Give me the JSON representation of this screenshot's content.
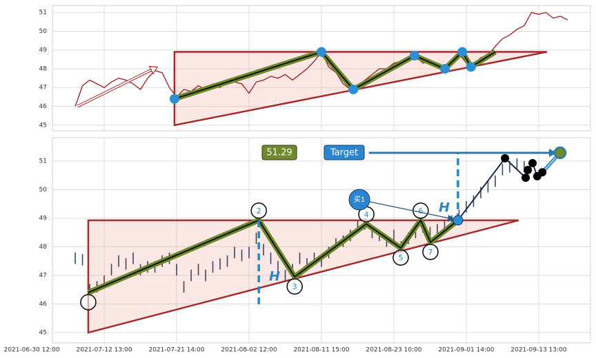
{
  "chart_data": [
    {
      "type": "line",
      "x": [
        12,
        14,
        16,
        18,
        20,
        22,
        24,
        26,
        28,
        30,
        32,
        34,
        36,
        38,
        40,
        42,
        44,
        46,
        48,
        50,
        52,
        54,
        56,
        58,
        60,
        62,
        64,
        66,
        68,
        70,
        72,
        74,
        76,
        78,
        80,
        82,
        84,
        86,
        88,
        90,
        92,
        94,
        96,
        98,
        100,
        102,
        104,
        106,
        108,
        110,
        112,
        114,
        116,
        118,
        120,
        122,
        124,
        126,
        128,
        130,
        132,
        134,
        136,
        138,
        140,
        142,
        144,
        146,
        148
      ],
      "values": [
        46.0,
        47.1,
        47.4,
        47.2,
        47.0,
        47.3,
        47.5,
        47.4,
        47.2,
        46.9,
        47.5,
        47.9,
        47.8,
        47.0,
        46.5,
        46.9,
        46.8,
        47.1,
        46.9,
        47.2,
        47.0,
        47.4,
        47.3,
        47.2,
        46.7,
        47.3,
        47.4,
        47.6,
        47.5,
        47.7,
        47.4,
        47.7,
        48.0,
        48.4,
        48.9,
        48.1,
        47.8,
        47.2,
        46.9,
        47.1,
        47.4,
        47.7,
        48.0,
        48.0,
        48.3,
        48.4,
        48.5,
        48.7,
        48.3,
        48.4,
        48.2,
        48.0,
        48.4,
        48.8,
        48.3,
        48.2,
        48.6,
        48.7,
        49.2,
        49.6,
        49.8,
        50.1,
        50.3,
        51.0,
        50.9,
        51.0,
        50.7,
        50.8,
        50.6
      ],
      "color": "#a0282c",
      "xlim": [
        5.7,
        154.3
      ],
      "ylim": [
        44.7,
        51.37
      ],
      "yticks": [
        45,
        46,
        47,
        48,
        49,
        50,
        51
      ],
      "grid": true,
      "pattern": {
        "triangle": {
          "x": [
            39.4,
            39.4,
            142.3
          ],
          "values": [
            48.9,
            45.0,
            48.9
          ]
        },
        "zigzag": {
          "x": [
            39.4,
            80,
            88.8,
            105.7,
            114.1,
            118.9,
            121.3,
            128
          ],
          "values": [
            46.4,
            48.9,
            46.9,
            48.7,
            48.0,
            48.9,
            48.1,
            48.9
          ]
        },
        "arrow": {
          "x": [
            12.6,
            34.7
          ],
          "values": [
            46.0,
            48.1
          ]
        }
      }
    },
    {
      "type": "ohlc",
      "x": [
        12,
        14,
        16,
        18,
        20,
        22,
        24,
        26,
        28,
        30,
        32,
        34,
        36,
        38,
        40,
        42,
        44,
        46,
        48,
        50,
        52,
        54,
        56,
        58,
        60,
        62,
        64,
        66,
        68,
        70,
        72,
        74,
        76,
        78,
        80,
        82,
        84,
        86,
        88,
        90,
        92,
        94,
        96,
        98,
        100,
        102,
        104,
        106,
        108,
        110,
        112,
        114,
        116,
        118,
        120,
        122,
        124,
        126,
        128,
        130,
        132,
        134,
        136
      ],
      "low": [
        47.4,
        47.35,
        46.3,
        46.4,
        46.6,
        47.0,
        47.3,
        47.2,
        47.4,
        47.0,
        47.1,
        47.1,
        47.3,
        47.4,
        47.0,
        46.4,
        46.8,
        47.0,
        46.8,
        47.1,
        47.2,
        47.3,
        47.6,
        47.5,
        47.6,
        48.1,
        47.7,
        47.4,
        47.1,
        46.8,
        47.0,
        47.4,
        47.2,
        47.4,
        47.3,
        47.6,
        47.9,
        48.0,
        48.2,
        48.5,
        48.6,
        48.3,
        48.2,
        48.0,
        48.2,
        47.8,
        48.1,
        48.3,
        48.5,
        48.3,
        48.4,
        48.5,
        48.7,
        48.9,
        49.2,
        49.4,
        49.7,
        49.9,
        50.1,
        50.5,
        50.6,
        50.7,
        50.6
      ],
      "high": [
        47.8,
        47.75,
        46.7,
        46.8,
        47.0,
        47.4,
        47.7,
        47.6,
        47.8,
        47.4,
        47.5,
        47.5,
        47.7,
        47.8,
        47.4,
        46.8,
        47.2,
        47.4,
        47.2,
        47.5,
        47.6,
        47.7,
        48.0,
        47.9,
        48.0,
        48.5,
        48.1,
        47.8,
        47.5,
        47.2,
        47.4,
        47.8,
        47.6,
        47.8,
        47.7,
        48.0,
        48.3,
        48.4,
        48.6,
        48.9,
        49.0,
        48.7,
        48.6,
        48.4,
        48.6,
        48.2,
        48.5,
        48.7,
        48.9,
        48.7,
        48.8,
        48.9,
        49.1,
        49.3,
        49.6,
        49.8,
        50.1,
        50.3,
        50.5,
        50.9,
        51.0,
        51.1,
        51.0
      ],
      "color": "#3c4660",
      "xlim": [
        5.7,
        154.3
      ],
      "ylim": [
        44.64,
        51.82
      ],
      "yticks": [
        45,
        46,
        47,
        48,
        49,
        50,
        51
      ],
      "grid": true,
      "xticks": [
        {
          "value": 0,
          "label": "2021-06-30 12:00"
        },
        {
          "value": 20,
          "label": "2021-07-12 13:00"
        },
        {
          "value": 40,
          "label": "2021-07-21 14:00"
        },
        {
          "value": 60,
          "label": "2021-08-02 12:00"
        },
        {
          "value": 80,
          "label": "2021-08-11 15:00"
        },
        {
          "value": 100,
          "label": "2021-08-23 10:00"
        },
        {
          "value": 120,
          "label": "2021-09-01 14:00"
        },
        {
          "value": 140,
          "label": "2021-09-13 13:00"
        }
      ],
      "pattern": {
        "triangle": {
          "x": [
            15.6,
            15.6,
            134.5
          ],
          "values": [
            48.93,
            45.0,
            48.93
          ]
        },
        "zigzag": {
          "x": [
            15.6,
            62.7,
            72.6,
            92.4,
            101.9,
            107.4,
            110.1,
            117.7
          ],
          "values": [
            46.4,
            48.93,
            46.95,
            48.8,
            47.96,
            48.93,
            48.16,
            48.93
          ],
          "labels": [
            null,
            "2",
            "3",
            "4",
            "5",
            "6",
            "7",
            null
          ]
        },
        "height_marker_low": 45.9,
        "h_label": "H",
        "buy_label": "买1",
        "target": {
          "x": [
            93.1,
            145.9
          ],
          "value": 51.29,
          "label": "Target"
        },
        "followup": {
          "x": [
            117.7,
            130.7,
            136.4,
            137,
            138.3,
            139.6,
            141
          ],
          "values": [
            48.93,
            51.1,
            50.42,
            50.69,
            50.93,
            50.47,
            50.61
          ]
        }
      }
    }
  ]
}
